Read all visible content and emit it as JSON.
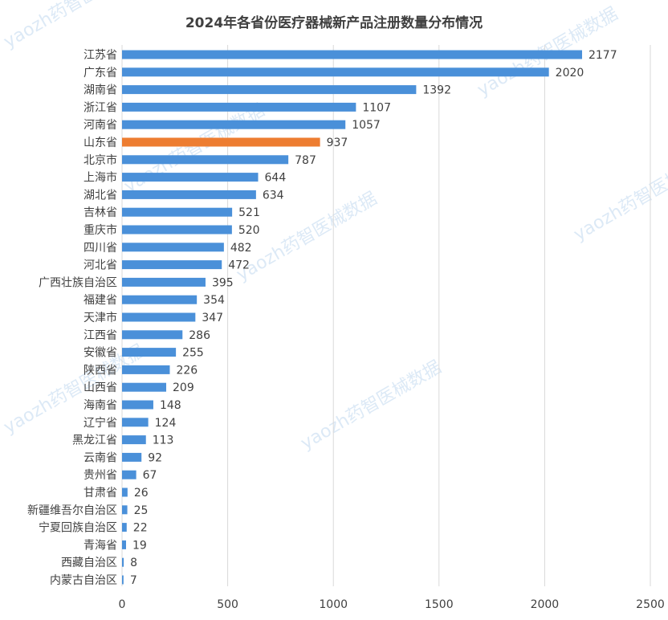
{
  "chart_data": {
    "type": "bar",
    "orientation": "horizontal",
    "title": "2024年各省份医疗器械新产品注册数量分布情况",
    "xlabel": "",
    "ylabel": "",
    "xlim": [
      0,
      2500
    ],
    "x_ticks": [
      0,
      500,
      1000,
      1500,
      2000,
      2500
    ],
    "grid": "vertical",
    "legend": "none",
    "categories": [
      "江苏省",
      "广东省",
      "湖南省",
      "浙江省",
      "河南省",
      "山东省",
      "北京市",
      "上海市",
      "湖北省",
      "吉林省",
      "重庆市",
      "四川省",
      "河北省",
      "广西壮族自治区",
      "福建省",
      "天津市",
      "江西省",
      "安徽省",
      "陕西省",
      "山西省",
      "海南省",
      "辽宁省",
      "黑龙江省",
      "云南省",
      "贵州省",
      "甘肃省",
      "新疆维吾尔自治区",
      "宁夏回族自治区",
      "青海省",
      "西藏自治区",
      "内蒙古自治区"
    ],
    "values": [
      2177,
      2020,
      1392,
      1107,
      1057,
      937,
      787,
      644,
      634,
      521,
      520,
      482,
      472,
      395,
      354,
      347,
      286,
      255,
      226,
      209,
      148,
      124,
      113,
      92,
      67,
      26,
      25,
      22,
      19,
      8,
      7
    ],
    "bar_color": "#4a90d9",
    "highlight_category": "山东省",
    "highlight_color": "#ed7d31",
    "gridline_color": "#d9d9d9"
  },
  "watermarks": [
    "yaozh药智医械数据",
    "yaozh药智医械数据",
    "yaozh药智医械数据",
    "yaozh药智医械数据",
    "yaozh药智医械数据",
    "yaozh药智医械数据",
    "yaozh药智医械数据"
  ]
}
